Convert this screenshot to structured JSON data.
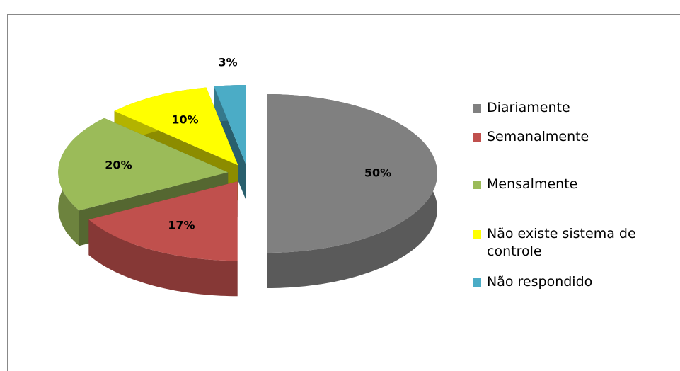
{
  "chart_data": {
    "type": "pie3d",
    "categories": [
      "Diariamente",
      "Semanalmente",
      "Mensalmente",
      "Não existe sistema de controle",
      "Não respondido"
    ],
    "values": [
      50,
      17,
      20,
      10,
      3
    ],
    "value_labels": [
      "50%",
      "17%",
      "20%",
      "10%",
      "3%"
    ],
    "colors": [
      "#808080",
      "#c0504d",
      "#9bbb59",
      "#ffff00",
      "#4bacc6"
    ],
    "legend": "right"
  }
}
